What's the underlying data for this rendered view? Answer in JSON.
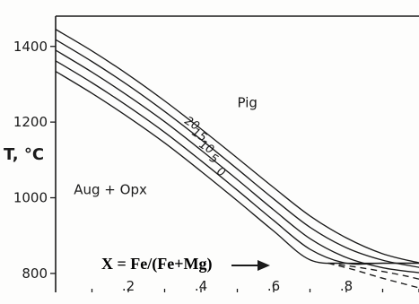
{
  "chart_data": {
    "type": "line",
    "title": "",
    "xlabel": "X = Fe/(Fe+Mg)",
    "ylabel": "T, °C",
    "xlim": [
      0,
      1
    ],
    "ylim": [
      750,
      1480
    ],
    "x_ticks": [
      0.2,
      0.4,
      0.6,
      0.8
    ],
    "x_tick_labels": [
      ".2",
      ".4",
      ".6",
      ".8"
    ],
    "y_ticks": [
      800,
      1000,
      1200,
      1400
    ],
    "y_tick_labels": [
      "800",
      "1000",
      "1200",
      "1400"
    ],
    "region_labels": [
      {
        "text": "Pig",
        "x": 0.5,
        "y": 1240
      },
      {
        "text": "Aug + Opx",
        "x": 0.05,
        "y": 1010
      }
    ],
    "series": [
      {
        "name": "20",
        "label": "20",
        "x": [
          0.0,
          0.1,
          0.2,
          0.3,
          0.4,
          0.5,
          0.6,
          0.7,
          0.8,
          0.9,
          1.0
        ],
        "y": [
          1445,
          1388,
          1325,
          1256,
          1182,
          1105,
          1027,
          952,
          894,
          852,
          828
        ]
      },
      {
        "name": "15",
        "label": "15",
        "x": [
          0.0,
          0.1,
          0.2,
          0.3,
          0.4,
          0.5,
          0.6,
          0.7,
          0.8,
          0.9,
          1.0
        ],
        "y": [
          1418,
          1360,
          1297,
          1228,
          1154,
          1076,
          997,
          922,
          868,
          835,
          816
        ]
      },
      {
        "name": "10",
        "label": "10",
        "x": [
          0.0,
          0.1,
          0.2,
          0.3,
          0.4,
          0.5,
          0.6,
          0.7,
          0.8,
          0.9,
          1.0
        ],
        "y": [
          1390,
          1332,
          1269,
          1201,
          1126,
          1048,
          968,
          892,
          842,
          815,
          802
        ]
      },
      {
        "name": "5",
        "label": "5",
        "x": [
          0.0,
          0.1,
          0.2,
          0.3,
          0.4,
          0.5,
          0.6,
          0.7,
          0.8,
          0.9,
          1.0
        ],
        "y": [
          1362,
          1304,
          1241,
          1173,
          1098,
          1020,
          940,
          864,
          827,
          827,
          827
        ]
      },
      {
        "name": "0",
        "label": "0",
        "x": [
          0.0,
          0.1,
          0.2,
          0.3,
          0.4,
          0.5,
          0.6,
          0.7,
          0.8,
          0.9,
          1.0
        ],
        "y": [
          1334,
          1276,
          1213,
          1145,
          1070,
          992,
          912,
          836,
          827,
          827,
          827
        ]
      }
    ],
    "dashed_series": [
      {
        "x": [
          0.75,
          0.82,
          0.89,
          0.96,
          1.0
        ],
        "y": [
          827,
          818,
          807,
          794,
          785
        ]
      },
      {
        "x": [
          0.75,
          0.82,
          0.89,
          0.96,
          1.0
        ],
        "y": [
          827,
          810,
          790,
          772,
          762
        ]
      }
    ],
    "horizontal_line": {
      "x": [
        0.75,
        1.0
      ],
      "y": 827
    },
    "grid": false,
    "legend": "none"
  }
}
